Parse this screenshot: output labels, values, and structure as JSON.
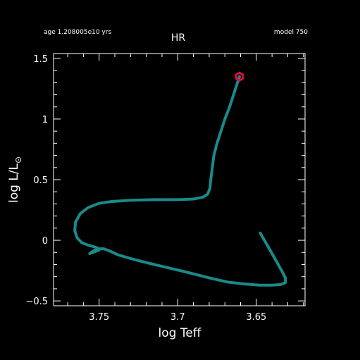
{
  "header": {
    "age_label": "age 1.208005e10 yrs",
    "model_label": "model 750"
  },
  "chart_data": {
    "type": "line",
    "title": "HR",
    "xlabel": "log Teff",
    "ylabel_main": "log L/L",
    "ylabel_sub": "⊙",
    "xlim": [
      3.779,
      3.619
    ],
    "ylim": [
      -0.54,
      1.54
    ],
    "x_inverted": true,
    "grid": false,
    "xticks": [
      3.75,
      3.7,
      3.65
    ],
    "xtick_labels": [
      "3.75",
      "3.7",
      "3.65"
    ],
    "yticks": [
      -0.5,
      0,
      0.5,
      1,
      1.5
    ],
    "ytick_labels": [
      "−0.5",
      "0",
      "0.5",
      "1",
      "1.5"
    ],
    "line_color": "#1a8a8a",
    "marker_color": "#e0103c",
    "series": [
      {
        "points": [
          [
            3.6475,
            0.06
          ],
          [
            3.6435,
            -0.03
          ],
          [
            3.64,
            -0.11
          ],
          [
            3.6365,
            -0.19
          ],
          [
            3.6335,
            -0.26
          ],
          [
            3.6315,
            -0.31
          ],
          [
            3.6315,
            -0.35
          ],
          [
            3.6345,
            -0.365
          ],
          [
            3.64,
            -0.37
          ],
          [
            3.648,
            -0.37
          ],
          [
            3.658,
            -0.36
          ],
          [
            3.668,
            -0.345
          ],
          [
            3.68,
            -0.31
          ],
          [
            3.692,
            -0.27
          ],
          [
            3.705,
            -0.23
          ],
          [
            3.718,
            -0.19
          ],
          [
            3.73,
            -0.15
          ],
          [
            3.738,
            -0.12
          ],
          [
            3.743,
            -0.09
          ],
          [
            3.747,
            -0.07
          ],
          [
            3.751,
            -0.07
          ],
          [
            3.754,
            -0.09
          ],
          [
            3.756,
            -0.11
          ],
          [
            3.75,
            -0.08
          ],
          [
            3.7515,
            -0.06
          ],
          [
            3.757,
            -0.04
          ],
          [
            3.761,
            -0.02
          ],
          [
            3.764,
            0.02
          ],
          [
            3.7655,
            0.08
          ],
          [
            3.765,
            0.15
          ],
          [
            3.762,
            0.22
          ],
          [
            3.757,
            0.27
          ],
          [
            3.75,
            0.305
          ],
          [
            3.742,
            0.32
          ],
          [
            3.73,
            0.33
          ],
          [
            3.715,
            0.335
          ],
          [
            3.7,
            0.335
          ],
          [
            3.69,
            0.34
          ],
          [
            3.684,
            0.355
          ],
          [
            3.681,
            0.38
          ],
          [
            3.6795,
            0.43
          ],
          [
            3.679,
            0.5
          ],
          [
            3.678,
            0.6
          ],
          [
            3.677,
            0.7
          ],
          [
            3.675,
            0.8
          ],
          [
            3.6725,
            0.9
          ],
          [
            3.67,
            1.0
          ],
          [
            3.667,
            1.1
          ],
          [
            3.6645,
            1.2
          ],
          [
            3.662,
            1.3
          ],
          [
            3.6607,
            1.35
          ]
        ]
      }
    ],
    "current_point": [
      3.6607,
      1.35
    ]
  }
}
